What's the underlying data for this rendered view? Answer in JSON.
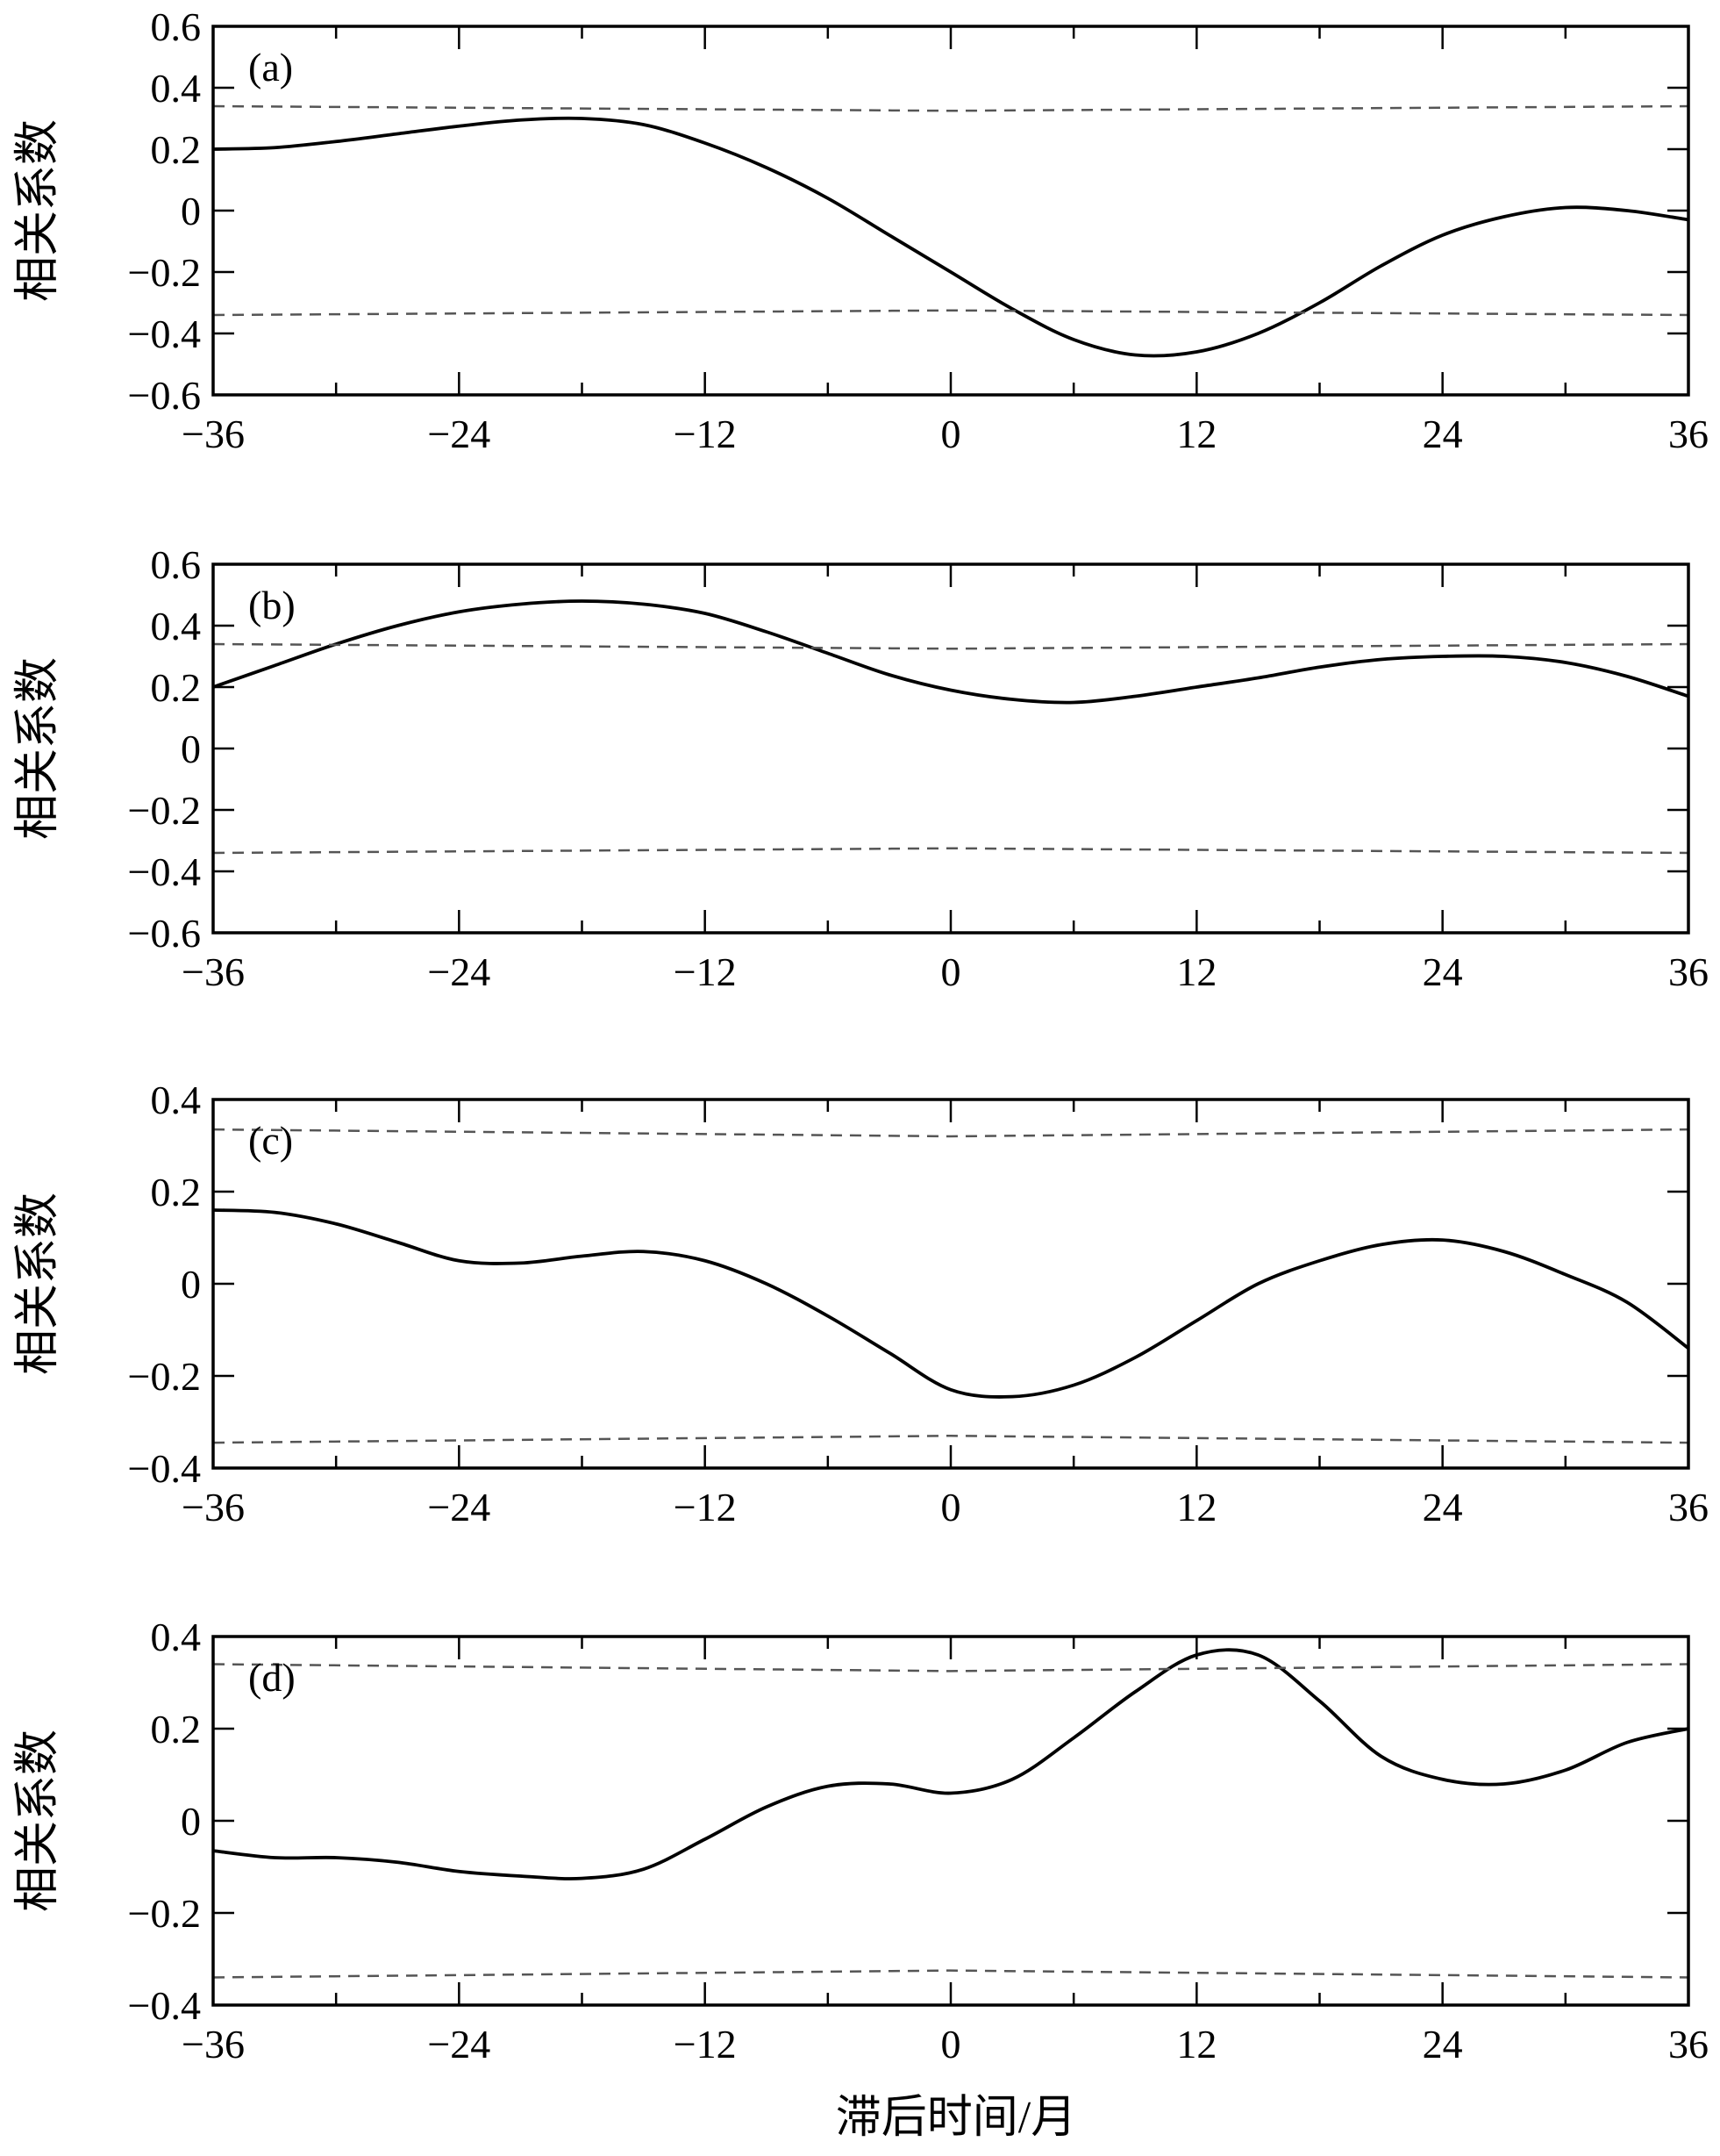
{
  "xlabel": "滞后时间/月",
  "chart_data": [
    {
      "type": "line",
      "panel_label": "(a)",
      "ylabel": "相关系数",
      "xlim": [
        -36,
        36
      ],
      "ylim": [
        -0.6,
        0.6
      ],
      "xticks": [
        -36,
        -24,
        -12,
        0,
        12,
        24,
        36
      ],
      "yticks": [
        -0.6,
        -0.4,
        -0.2,
        0,
        0.2,
        0.4,
        0.6
      ],
      "ytick_labels": [
        "−0.6",
        "−0.4",
        "−0.2",
        "0",
        "0.2",
        "0.4",
        "0.6"
      ],
      "xtick_labels": [
        "−36",
        "−24",
        "−12",
        "0",
        "12",
        "24",
        "36"
      ],
      "series": [
        {
          "style": "solid",
          "x": [
            -36,
            -33,
            -30,
            -27,
            -24,
            -21,
            -18,
            -15,
            -12,
            -9,
            -6,
            -3,
            0,
            3,
            6,
            9,
            12,
            15,
            18,
            21,
            24,
            27,
            30,
            33,
            36
          ],
          "y": [
            0.2,
            0.205,
            0.225,
            0.25,
            0.275,
            0.295,
            0.3,
            0.28,
            0.22,
            0.14,
            0.04,
            -0.08,
            -0.2,
            -0.32,
            -0.42,
            -0.47,
            -0.46,
            -0.4,
            -0.3,
            -0.18,
            -0.08,
            -0.02,
            0.01,
            0.0,
            -0.03
          ]
        },
        {
          "style": "dashed",
          "x": [
            -36,
            0,
            36
          ],
          "y": [
            0.34,
            0.325,
            0.34
          ]
        },
        {
          "style": "dashed",
          "x": [
            -36,
            0,
            36
          ],
          "y": [
            -0.34,
            -0.325,
            -0.34
          ]
        }
      ]
    },
    {
      "type": "line",
      "panel_label": "(b)",
      "ylabel": "相关系数",
      "xlim": [
        -36,
        36
      ],
      "ylim": [
        -0.6,
        0.6
      ],
      "xticks": [
        -36,
        -24,
        -12,
        0,
        12,
        24,
        36
      ],
      "yticks": [
        -0.6,
        -0.4,
        -0.2,
        0,
        0.2,
        0.4,
        0.6
      ],
      "ytick_labels": [
        "−0.6",
        "−0.4",
        "−0.2",
        "0",
        "0.2",
        "0.4",
        "0.6"
      ],
      "xtick_labels": [
        "−36",
        "−24",
        "−12",
        "0",
        "12",
        "24",
        "36"
      ],
      "series": [
        {
          "style": "solid",
          "x": [
            -36,
            -33,
            -30,
            -27,
            -24,
            -21,
            -18,
            -15,
            -12,
            -9,
            -6,
            -3,
            0,
            3,
            6,
            9,
            12,
            15,
            18,
            21,
            24,
            27,
            30,
            33,
            36
          ],
          "y": [
            0.2,
            0.27,
            0.34,
            0.4,
            0.445,
            0.47,
            0.48,
            0.47,
            0.44,
            0.38,
            0.31,
            0.24,
            0.19,
            0.16,
            0.15,
            0.17,
            0.2,
            0.23,
            0.265,
            0.29,
            0.3,
            0.3,
            0.28,
            0.235,
            0.17
          ]
        },
        {
          "style": "dashed",
          "x": [
            -36,
            0,
            36
          ],
          "y": [
            0.34,
            0.325,
            0.34
          ]
        },
        {
          "style": "dashed",
          "x": [
            -36,
            0,
            36
          ],
          "y": [
            -0.34,
            -0.325,
            -0.34
          ]
        }
      ]
    },
    {
      "type": "line",
      "panel_label": "(c)",
      "ylabel": "相关系数",
      "xlim": [
        -36,
        36
      ],
      "ylim": [
        -0.4,
        0.4
      ],
      "xticks": [
        -36,
        -24,
        -12,
        0,
        12,
        24,
        36
      ],
      "yticks": [
        -0.4,
        -0.2,
        0,
        0.2,
        0.4
      ],
      "ytick_labels": [
        "−0.4",
        "−0.2",
        "0",
        "0.2",
        "0.4"
      ],
      "xtick_labels": [
        "−36",
        "−24",
        "−12",
        "0",
        "12",
        "24",
        "36"
      ],
      "series": [
        {
          "style": "solid",
          "x": [
            -36,
            -33,
            -30,
            -27,
            -24,
            -21,
            -18,
            -15,
            -12,
            -9,
            -6,
            -3,
            0,
            3,
            6,
            9,
            12,
            15,
            18,
            21,
            24,
            27,
            30,
            33,
            36
          ],
          "y": [
            0.16,
            0.155,
            0.13,
            0.09,
            0.05,
            0.045,
            0.06,
            0.07,
            0.05,
            0.0,
            -0.07,
            -0.15,
            -0.23,
            -0.245,
            -0.22,
            -0.16,
            -0.08,
            0.0,
            0.05,
            0.085,
            0.095,
            0.07,
            0.02,
            -0.04,
            -0.14
          ]
        },
        {
          "style": "dashed",
          "x": [
            -36,
            0,
            36
          ],
          "y": [
            0.335,
            0.32,
            0.335
          ]
        },
        {
          "style": "dashed",
          "x": [
            -36,
            0,
            36
          ],
          "y": [
            -0.345,
            -0.33,
            -0.345
          ]
        }
      ]
    },
    {
      "type": "line",
      "panel_label": "(d)",
      "ylabel": "相关系数",
      "xlim": [
        -36,
        36
      ],
      "ylim": [
        -0.4,
        0.4
      ],
      "xticks": [
        -36,
        -24,
        -12,
        0,
        12,
        24,
        36
      ],
      "yticks": [
        -0.4,
        -0.2,
        0,
        0.2,
        0.4
      ],
      "ytick_labels": [
        "−0.4",
        "−0.2",
        "0",
        "0.2",
        "0.4"
      ],
      "xtick_labels": [
        "−36",
        "−24",
        "−12",
        "0",
        "12",
        "24",
        "36"
      ],
      "series": [
        {
          "style": "solid",
          "x": [
            -36,
            -33,
            -30,
            -27,
            -24,
            -21,
            -18,
            -15,
            -12,
            -9,
            -6,
            -3,
            0,
            3,
            6,
            9,
            12,
            15,
            18,
            21,
            24,
            27,
            30,
            33,
            36
          ],
          "y": [
            -0.065,
            -0.08,
            -0.08,
            -0.09,
            -0.11,
            -0.12,
            -0.125,
            -0.105,
            -0.04,
            0.03,
            0.075,
            0.08,
            0.06,
            0.09,
            0.18,
            0.28,
            0.36,
            0.36,
            0.26,
            0.14,
            0.09,
            0.08,
            0.11,
            0.17,
            0.2
          ]
        },
        {
          "style": "dashed",
          "x": [
            -36,
            0,
            36
          ],
          "y": [
            0.34,
            0.325,
            0.34
          ]
        },
        {
          "style": "dashed",
          "x": [
            -36,
            0,
            36
          ],
          "y": [
            -0.34,
            -0.325,
            -0.34
          ]
        }
      ]
    }
  ]
}
